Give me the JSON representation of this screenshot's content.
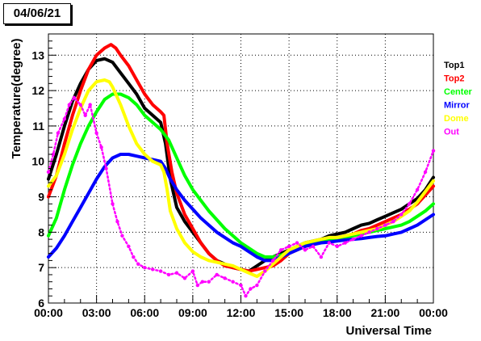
{
  "header": {
    "date": "04/06/21"
  },
  "chart_data": {
    "type": "line",
    "title": "",
    "xlabel": "Universal Time",
    "ylabel": "Temperature(degree)",
    "xlim": [
      0,
      24
    ],
    "ylim": [
      6,
      13.6
    ],
    "x_ticks": [
      0,
      3,
      6,
      9,
      12,
      15,
      18,
      21,
      24
    ],
    "x_tick_labels": [
      "00:00",
      "03:00",
      "06:00",
      "09:00",
      "12:00",
      "15:00",
      "18:00",
      "21:00",
      "00:00"
    ],
    "y_ticks": [
      6,
      7,
      8,
      9,
      10,
      11,
      12,
      13
    ],
    "y_tick_labels": [
      "6",
      "7",
      "8",
      "9",
      "10",
      "11",
      "12",
      "13"
    ],
    "grid": true,
    "legend_position": "right",
    "series": [
      {
        "name": "Top1",
        "color": "#000000",
        "points": [
          [
            0,
            9.5
          ],
          [
            0.5,
            10.2
          ],
          [
            1,
            11.0
          ],
          [
            1.5,
            11.7
          ],
          [
            2,
            12.2
          ],
          [
            2.5,
            12.6
          ],
          [
            3,
            12.85
          ],
          [
            3.5,
            12.9
          ],
          [
            4,
            12.8
          ],
          [
            4.5,
            12.5
          ],
          [
            5,
            12.2
          ],
          [
            5.5,
            11.9
          ],
          [
            6,
            11.5
          ],
          [
            6.5,
            11.3
          ],
          [
            7,
            11.1
          ],
          [
            7.3,
            10.5
          ],
          [
            7.6,
            9.5
          ],
          [
            8,
            8.7
          ],
          [
            8.5,
            8.3
          ],
          [
            9,
            8.0
          ],
          [
            9.5,
            7.7
          ],
          [
            10,
            7.4
          ],
          [
            10.5,
            7.2
          ],
          [
            11,
            7.1
          ],
          [
            11.5,
            7.0
          ],
          [
            12,
            6.95
          ],
          [
            12.5,
            6.9
          ],
          [
            13,
            7.05
          ],
          [
            13.5,
            7.2
          ],
          [
            14,
            7.3
          ],
          [
            14.5,
            7.4
          ],
          [
            15,
            7.5
          ],
          [
            15.5,
            7.6
          ],
          [
            16,
            7.7
          ],
          [
            16.5,
            7.75
          ],
          [
            17,
            7.8
          ],
          [
            17.5,
            7.9
          ],
          [
            18,
            7.95
          ],
          [
            18.5,
            8.0
          ],
          [
            19,
            8.1
          ],
          [
            19.5,
            8.2
          ],
          [
            20,
            8.25
          ],
          [
            20.5,
            8.35
          ],
          [
            21,
            8.45
          ],
          [
            21.5,
            8.55
          ],
          [
            22,
            8.65
          ],
          [
            22.5,
            8.8
          ],
          [
            23,
            8.95
          ],
          [
            23.5,
            9.2
          ],
          [
            24,
            9.55
          ]
        ]
      },
      {
        "name": "Top2",
        "color": "#ff0000",
        "points": [
          [
            0,
            9.0
          ],
          [
            0.5,
            9.6
          ],
          [
            1,
            10.5
          ],
          [
            1.5,
            11.3
          ],
          [
            2,
            12.0
          ],
          [
            2.5,
            12.6
          ],
          [
            3,
            13.0
          ],
          [
            3.5,
            13.2
          ],
          [
            3.9,
            13.3
          ],
          [
            4.2,
            13.2
          ],
          [
            4.5,
            13.0
          ],
          [
            5,
            12.7
          ],
          [
            5.5,
            12.3
          ],
          [
            6,
            11.9
          ],
          [
            6.5,
            11.6
          ],
          [
            7,
            11.4
          ],
          [
            7.2,
            11.3
          ],
          [
            7.4,
            10.5
          ],
          [
            7.7,
            9.7
          ],
          [
            8,
            9.1
          ],
          [
            8.5,
            8.5
          ],
          [
            9,
            8.1
          ],
          [
            9.5,
            7.7
          ],
          [
            10,
            7.4
          ],
          [
            10.5,
            7.2
          ],
          [
            11,
            7.05
          ],
          [
            11.5,
            7.0
          ],
          [
            12,
            6.95
          ],
          [
            12.5,
            6.9
          ],
          [
            13,
            6.95
          ],
          [
            13.5,
            7.0
          ],
          [
            14,
            7.05
          ],
          [
            14.5,
            7.2
          ],
          [
            15,
            7.4
          ],
          [
            15.5,
            7.5
          ],
          [
            16,
            7.6
          ],
          [
            16.5,
            7.7
          ],
          [
            17,
            7.75
          ],
          [
            17.5,
            7.8
          ],
          [
            18,
            7.85
          ],
          [
            18.5,
            7.9
          ],
          [
            19,
            7.95
          ],
          [
            19.5,
            8.05
          ],
          [
            20,
            8.1
          ],
          [
            20.5,
            8.2
          ],
          [
            21,
            8.3
          ],
          [
            21.5,
            8.4
          ],
          [
            22,
            8.5
          ],
          [
            22.5,
            8.65
          ],
          [
            23,
            8.8
          ],
          [
            23.5,
            9.05
          ],
          [
            24,
            9.3
          ]
        ]
      },
      {
        "name": "Center",
        "color": "#00ff00",
        "points": [
          [
            0,
            7.9
          ],
          [
            0.5,
            8.4
          ],
          [
            1,
            9.2
          ],
          [
            1.5,
            9.9
          ],
          [
            2,
            10.5
          ],
          [
            2.5,
            11.0
          ],
          [
            3,
            11.4
          ],
          [
            3.5,
            11.75
          ],
          [
            4,
            11.9
          ],
          [
            4.5,
            11.9
          ],
          [
            5,
            11.8
          ],
          [
            5.5,
            11.6
          ],
          [
            6,
            11.3
          ],
          [
            6.5,
            11.1
          ],
          [
            7,
            10.9
          ],
          [
            7.5,
            10.6
          ],
          [
            8,
            10.1
          ],
          [
            8.5,
            9.6
          ],
          [
            9,
            9.2
          ],
          [
            9.5,
            8.9
          ],
          [
            10,
            8.6
          ],
          [
            10.5,
            8.35
          ],
          [
            11,
            8.1
          ],
          [
            11.5,
            7.9
          ],
          [
            12,
            7.7
          ],
          [
            12.5,
            7.55
          ],
          [
            13,
            7.4
          ],
          [
            13.5,
            7.3
          ],
          [
            14,
            7.3
          ],
          [
            14.5,
            7.35
          ],
          [
            15,
            7.45
          ],
          [
            15.5,
            7.55
          ],
          [
            16,
            7.65
          ],
          [
            16.5,
            7.7
          ],
          [
            17,
            7.75
          ],
          [
            17.5,
            7.8
          ],
          [
            18,
            7.8
          ],
          [
            18.5,
            7.85
          ],
          [
            19,
            7.9
          ],
          [
            19.5,
            7.95
          ],
          [
            20,
            8.0
          ],
          [
            20.5,
            8.05
          ],
          [
            21,
            8.1
          ],
          [
            21.5,
            8.15
          ],
          [
            22,
            8.2
          ],
          [
            22.5,
            8.3
          ],
          [
            23,
            8.45
          ],
          [
            23.5,
            8.6
          ],
          [
            24,
            8.8
          ]
        ]
      },
      {
        "name": "Mirror",
        "color": "#0000ff",
        "points": [
          [
            0,
            7.3
          ],
          [
            0.5,
            7.55
          ],
          [
            1,
            7.9
          ],
          [
            1.5,
            8.3
          ],
          [
            2,
            8.7
          ],
          [
            2.5,
            9.1
          ],
          [
            3,
            9.5
          ],
          [
            3.5,
            9.85
          ],
          [
            4,
            10.1
          ],
          [
            4.5,
            10.2
          ],
          [
            5,
            10.2
          ],
          [
            5.5,
            10.15
          ],
          [
            6,
            10.1
          ],
          [
            6.5,
            10.05
          ],
          [
            7,
            10.0
          ],
          [
            7.3,
            9.8
          ],
          [
            7.6,
            9.5
          ],
          [
            8,
            9.2
          ],
          [
            8.5,
            8.9
          ],
          [
            9,
            8.65
          ],
          [
            9.5,
            8.4
          ],
          [
            10,
            8.2
          ],
          [
            10.5,
            8.0
          ],
          [
            11,
            7.85
          ],
          [
            11.5,
            7.7
          ],
          [
            12,
            7.6
          ],
          [
            12.5,
            7.45
          ],
          [
            13,
            7.3
          ],
          [
            13.5,
            7.2
          ],
          [
            14,
            7.2
          ],
          [
            14.5,
            7.3
          ],
          [
            15,
            7.4
          ],
          [
            15.5,
            7.5
          ],
          [
            16,
            7.6
          ],
          [
            16.5,
            7.65
          ],
          [
            17,
            7.7
          ],
          [
            17.5,
            7.72
          ],
          [
            18,
            7.75
          ],
          [
            18.5,
            7.78
          ],
          [
            19,
            7.8
          ],
          [
            19.5,
            7.82
          ],
          [
            20,
            7.85
          ],
          [
            20.5,
            7.88
          ],
          [
            21,
            7.9
          ],
          [
            21.5,
            7.95
          ],
          [
            22,
            8.0
          ],
          [
            22.5,
            8.1
          ],
          [
            23,
            8.2
          ],
          [
            23.5,
            8.35
          ],
          [
            24,
            8.5
          ]
        ]
      },
      {
        "name": "Dome",
        "color": "#ffff00",
        "points": [
          [
            0,
            9.3
          ],
          [
            0.5,
            9.6
          ],
          [
            1,
            10.2
          ],
          [
            1.5,
            10.9
          ],
          [
            2,
            11.5
          ],
          [
            2.5,
            12.0
          ],
          [
            3,
            12.25
          ],
          [
            3.5,
            12.3
          ],
          [
            3.8,
            12.25
          ],
          [
            4,
            12.1
          ],
          [
            4.5,
            11.6
          ],
          [
            5,
            11.0
          ],
          [
            5.5,
            10.5
          ],
          [
            6,
            10.2
          ],
          [
            6.5,
            10.0
          ],
          [
            7,
            9.9
          ],
          [
            7.2,
            9.7
          ],
          [
            7.4,
            9.2
          ],
          [
            7.6,
            8.6
          ],
          [
            8,
            8.1
          ],
          [
            8.5,
            7.7
          ],
          [
            9,
            7.45
          ],
          [
            9.5,
            7.3
          ],
          [
            10,
            7.2
          ],
          [
            10.5,
            7.15
          ],
          [
            11,
            7.1
          ],
          [
            11.5,
            7.05
          ],
          [
            12,
            6.95
          ],
          [
            12.5,
            6.85
          ],
          [
            13,
            6.75
          ],
          [
            13.5,
            6.9
          ],
          [
            14,
            7.1
          ],
          [
            14.5,
            7.3
          ],
          [
            15,
            7.5
          ],
          [
            15.5,
            7.6
          ],
          [
            16,
            7.7
          ],
          [
            16.5,
            7.75
          ],
          [
            17,
            7.8
          ],
          [
            17.5,
            7.85
          ],
          [
            18,
            7.85
          ],
          [
            18.5,
            7.9
          ],
          [
            19,
            7.95
          ],
          [
            19.5,
            8.0
          ],
          [
            20,
            8.05
          ],
          [
            20.5,
            8.1
          ],
          [
            21,
            8.2
          ],
          [
            21.5,
            8.3
          ],
          [
            22,
            8.45
          ],
          [
            22.5,
            8.6
          ],
          [
            23,
            8.85
          ],
          [
            23.5,
            9.15
          ],
          [
            24,
            9.45
          ]
        ]
      },
      {
        "name": "Out",
        "color": "#ff00ff",
        "points": [
          [
            0,
            9.7
          ],
          [
            0.3,
            10.2
          ],
          [
            0.6,
            10.8
          ],
          [
            1,
            11.2
          ],
          [
            1.3,
            11.6
          ],
          [
            1.6,
            11.8
          ],
          [
            2,
            11.6
          ],
          [
            2.3,
            11.3
          ],
          [
            2.6,
            11.6
          ],
          [
            3,
            10.8
          ],
          [
            3.3,
            10.4
          ],
          [
            3.6,
            9.8
          ],
          [
            4,
            8.8
          ],
          [
            4.3,
            8.3
          ],
          [
            4.6,
            7.9
          ],
          [
            5,
            7.6
          ],
          [
            5.3,
            7.3
          ],
          [
            5.6,
            7.1
          ],
          [
            6,
            7.0
          ],
          [
            6.5,
            6.95
          ],
          [
            7,
            6.9
          ],
          [
            7.5,
            6.8
          ],
          [
            8,
            6.85
          ],
          [
            8.5,
            6.7
          ],
          [
            9,
            6.9
          ],
          [
            9.3,
            6.5
          ],
          [
            9.6,
            6.6
          ],
          [
            10,
            6.6
          ],
          [
            10.5,
            6.8
          ],
          [
            11,
            6.7
          ],
          [
            11.5,
            6.6
          ],
          [
            12,
            6.5
          ],
          [
            12.3,
            6.2
          ],
          [
            12.6,
            6.4
          ],
          [
            13,
            6.5
          ],
          [
            13.5,
            6.9
          ],
          [
            14,
            7.2
          ],
          [
            14.5,
            7.5
          ],
          [
            15,
            7.6
          ],
          [
            15.5,
            7.7
          ],
          [
            16,
            7.5
          ],
          [
            16.5,
            7.6
          ],
          [
            17,
            7.3
          ],
          [
            17.5,
            7.7
          ],
          [
            18,
            7.6
          ],
          [
            18.5,
            7.7
          ],
          [
            19,
            7.8
          ],
          [
            19.5,
            7.9
          ],
          [
            20,
            8.0
          ],
          [
            20.5,
            8.1
          ],
          [
            21,
            8.2
          ],
          [
            21.5,
            8.3
          ],
          [
            22,
            8.5
          ],
          [
            22.5,
            8.8
          ],
          [
            23,
            9.2
          ],
          [
            23.5,
            9.7
          ],
          [
            24,
            10.3
          ]
        ]
      }
    ]
  }
}
